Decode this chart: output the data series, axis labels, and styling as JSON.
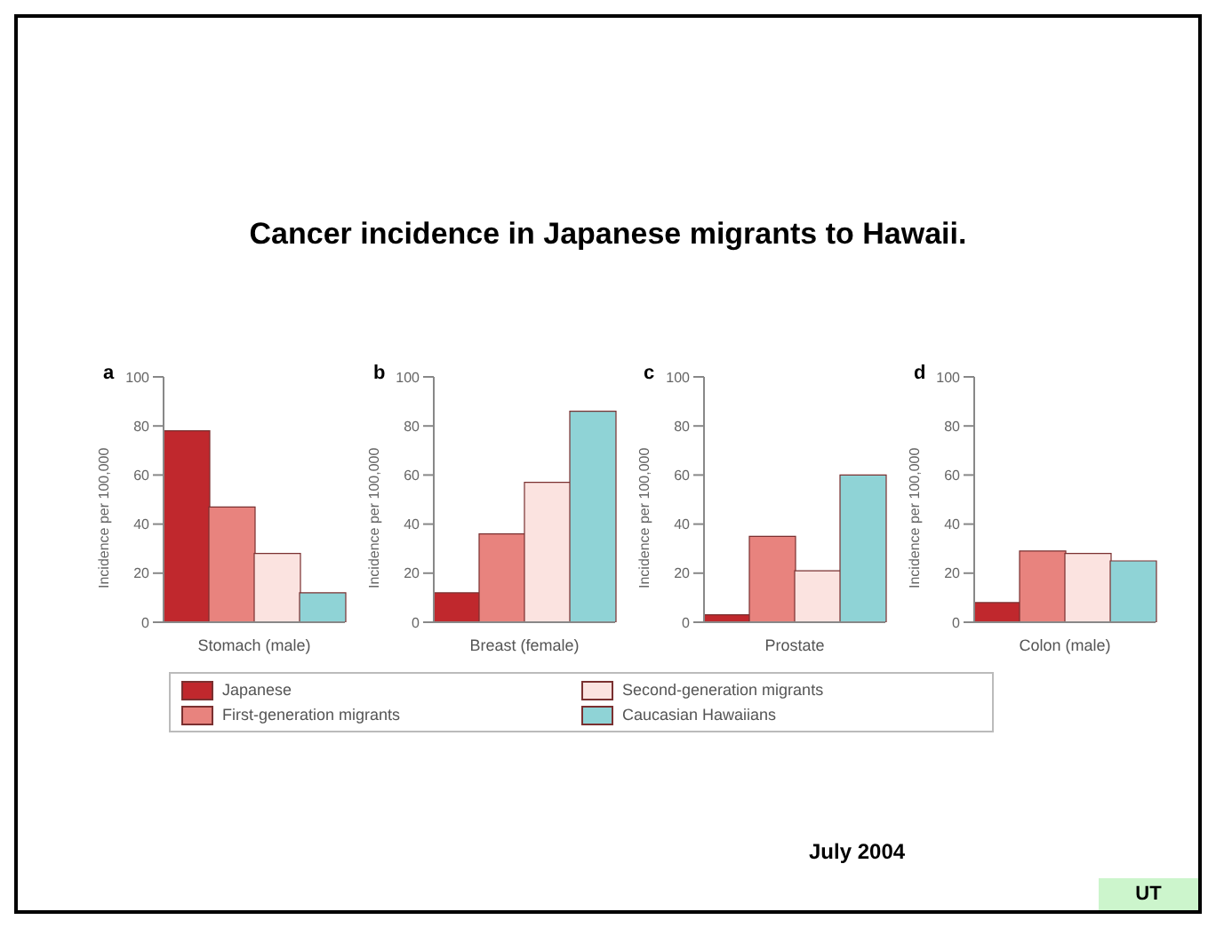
{
  "chart_data": [
    {
      "type": "bar",
      "title": "Cancer incidence in Japanese migrants to Hawaii.",
      "annotations": [
        "a",
        "July 2004",
        "UT"
      ],
      "categories": [
        null,
        null,
        null,
        null
      ],
      "xlabel": "Stomach (male)",
      "ylabel": "Incidence per 100,000",
      "ylim": [
        0,
        100
      ],
      "yticks": [
        0,
        20,
        40,
        60,
        80,
        100
      ],
      "legend": "bottom",
      "stacked": true,
      "series": [
        {
          "name": "Japanese",
          "color": "#c0282d",
          "values": [
            78,
            null,
            null,
            null
          ]
        },
        {
          "name": "First-generation migrants",
          "color": "#e8837e",
          "values": [
            null,
            47,
            null,
            null
          ]
        },
        {
          "name": "Second-generation migrants",
          "color": "#fbe3e0",
          "values": [
            null,
            null,
            28,
            null
          ]
        },
        {
          "name": "Caucasian Hawaiians",
          "color": "#8fd3d6",
          "values": [
            null,
            null,
            null,
            12
          ]
        }
      ]
    },
    {
      "type": "bar",
      "annotations": [
        "b"
      ],
      "categories": [
        null,
        null,
        null,
        null
      ],
      "xlabel": "Breast (female)",
      "ylabel": "Incidence per 100,000",
      "ylim": [
        0,
        100
      ],
      "yticks": [
        0,
        20,
        40,
        60,
        80,
        100
      ],
      "stacked": true,
      "series": [
        {
          "color": "#c0282d",
          "values": [
            12,
            null,
            null,
            null
          ]
        },
        {
          "color": "#e8837e",
          "values": [
            null,
            36,
            null,
            null
          ]
        },
        {
          "color": "#fbe3e0",
          "values": [
            null,
            null,
            57,
            null
          ]
        },
        {
          "color": "#8fd3d6",
          "values": [
            null,
            null,
            null,
            86
          ]
        }
      ]
    },
    {
      "type": "bar",
      "annotations": [
        "c"
      ],
      "categories": [
        null,
        null,
        null,
        null
      ],
      "xlabel": "Prostate",
      "ylabel": "Incidence per 100,000",
      "ylim": [
        0,
        100
      ],
      "yticks": [
        0,
        20,
        40,
        60,
        80,
        100
      ],
      "stacked": true,
      "series": [
        {
          "color": "#c0282d",
          "values": [
            3,
            null,
            null,
            null
          ]
        },
        {
          "color": "#e8837e",
          "values": [
            null,
            35,
            null,
            null
          ]
        },
        {
          "color": "#fbe3e0",
          "values": [
            null,
            null,
            21,
            null
          ]
        },
        {
          "color": "#8fd3d6",
          "values": [
            null,
            null,
            null,
            60
          ]
        }
      ]
    },
    {
      "type": "bar",
      "annotations": [
        "d"
      ],
      "categories": [
        null,
        null,
        null,
        null
      ],
      "xlabel": "Colon (male)",
      "ylabel": "Incidence per 100,000",
      "ylim": [
        0,
        100
      ],
      "yticks": [
        0,
        20,
        40,
        60,
        80,
        100
      ],
      "stacked": true,
      "series": [
        {
          "color": "#c0282d",
          "values": [
            8,
            null,
            null,
            null
          ]
        },
        {
          "color": "#e8837e",
          "values": [
            null,
            29,
            null,
            null
          ]
        },
        {
          "color": "#fbe3e0",
          "values": [
            null,
            null,
            28,
            null
          ]
        },
        {
          "color": "#8fd3d6",
          "values": [
            null,
            null,
            null,
            25
          ]
        }
      ]
    }
  ]
}
